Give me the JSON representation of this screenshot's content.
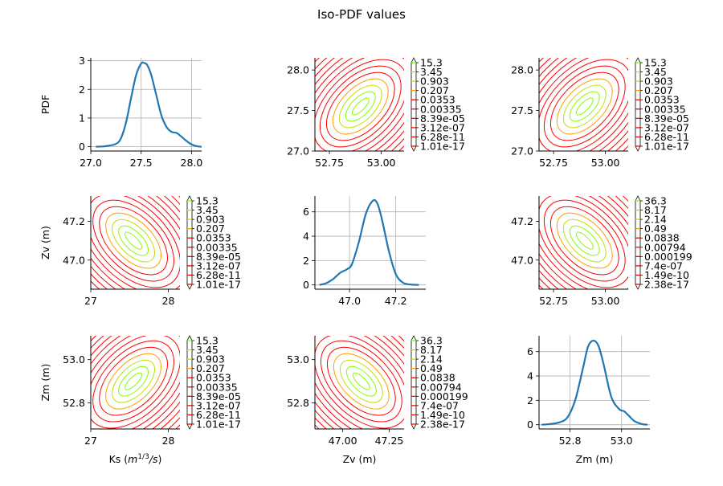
{
  "figure": {
    "title": "Iso-PDF values"
  },
  "colors": {
    "line": "#1f77b4",
    "grid": "#b0b0b0",
    "low": "#ff0000",
    "high": "#80ff00"
  },
  "chart_data": [
    {
      "id": "p11",
      "type": "line",
      "title": "",
      "xlabel": "",
      "ylabel": "PDF",
      "xlim": [
        27.0,
        28.1
      ],
      "ylim": [
        -0.15,
        3.1
      ],
      "xticks": [
        27.0,
        27.5,
        28.0
      ],
      "xtick_labels": [
        "27.0",
        "27.5",
        "28.0"
      ],
      "yticks": [
        0,
        1,
        2,
        3
      ],
      "ytick_labels": [
        "0",
        "1",
        "2",
        "3"
      ],
      "grid": true,
      "x": [
        27.05,
        27.15,
        27.25,
        27.3,
        27.35,
        27.4,
        27.45,
        27.5,
        27.53,
        27.56,
        27.6,
        27.65,
        27.7,
        27.75,
        27.8,
        27.85,
        27.9,
        27.95,
        28.0,
        28.05,
        28.1
      ],
      "y": [
        0.0,
        0.02,
        0.1,
        0.3,
        0.85,
        1.7,
        2.5,
        2.9,
        2.92,
        2.85,
        2.5,
        1.8,
        1.1,
        0.7,
        0.52,
        0.48,
        0.35,
        0.2,
        0.08,
        0.02,
        0.0
      ]
    },
    {
      "id": "p12",
      "type": "contour",
      "title": "",
      "xlabel": "",
      "ylabel": "",
      "xlim": [
        52.68,
        53.11
      ],
      "ylim": [
        27.0,
        28.15
      ],
      "xticks": [
        52.75,
        53.0
      ],
      "xtick_labels": [
        "52.75",
        "53.00"
      ],
      "yticks": [
        27.0,
        27.5,
        28.0
      ],
      "ytick_labels": [
        "27.0",
        "27.5",
        "28.0"
      ],
      "grid": false,
      "center": [
        52.9,
        27.55
      ],
      "correlation": "positive",
      "levels": [
        "15.3",
        "3.45",
        "0.903",
        "0.207",
        "0.0353",
        "0.00335",
        "8.39e-05",
        "3.12e-07",
        "6.28e-11",
        "1.01e-17"
      ]
    },
    {
      "id": "p13",
      "type": "contour",
      "title": "",
      "xlabel": "",
      "ylabel": "",
      "xlim": [
        52.68,
        53.11
      ],
      "ylim": [
        27.0,
        28.15
      ],
      "xticks": [
        52.75,
        53.0
      ],
      "xtick_labels": [
        "52.75",
        "53.00"
      ],
      "yticks": [
        27.0,
        27.5,
        28.0
      ],
      "ytick_labels": [
        "27.0",
        "27.5",
        "28.0"
      ],
      "grid": false,
      "center": [
        52.9,
        27.55
      ],
      "correlation": "positive",
      "levels": [
        "15.3",
        "3.45",
        "0.903",
        "0.207",
        "0.0353",
        "0.00335",
        "8.39e-05",
        "3.12e-07",
        "6.28e-11",
        "1.01e-17"
      ]
    },
    {
      "id": "p21",
      "type": "contour",
      "title": "",
      "xlabel": "",
      "ylabel": "Zv (m)",
      "xlim": [
        27.0,
        28.15
      ],
      "ylim": [
        46.85,
        47.33
      ],
      "xticks": [
        27,
        28
      ],
      "xtick_labels": [
        "27",
        "28"
      ],
      "yticks": [
        47.0,
        47.2
      ],
      "ytick_labels": [
        "47.0",
        "47.2"
      ],
      "grid": false,
      "center": [
        27.55,
        47.1
      ],
      "correlation": "negative",
      "levels": [
        "15.3",
        "3.45",
        "0.903",
        "0.207",
        "0.0353",
        "0.00335",
        "8.39e-05",
        "3.12e-07",
        "6.28e-11",
        "1.01e-17"
      ]
    },
    {
      "id": "p22",
      "type": "line",
      "title": "",
      "xlabel": "",
      "ylabel": "",
      "xlim": [
        46.85,
        47.33
      ],
      "ylim": [
        -0.35,
        7.3
      ],
      "xticks": [
        47.0,
        47.2
      ],
      "xtick_labels": [
        "47.0",
        "47.2"
      ],
      "yticks": [
        0,
        2,
        4,
        6
      ],
      "ytick_labels": [
        "0",
        "2",
        "4",
        "6"
      ],
      "grid": true,
      "x": [
        46.87,
        46.9,
        46.93,
        46.96,
        46.99,
        47.01,
        47.04,
        47.07,
        47.1,
        47.12,
        47.14,
        47.17,
        47.2,
        47.23,
        47.26,
        47.3
      ],
      "y": [
        0.0,
        0.15,
        0.5,
        1.0,
        1.3,
        1.7,
        3.5,
        5.8,
        6.9,
        6.7,
        5.4,
        2.8,
        0.9,
        0.2,
        0.04,
        0.0
      ]
    },
    {
      "id": "p23",
      "type": "contour",
      "title": "",
      "xlabel": "",
      "ylabel": "",
      "xlim": [
        52.68,
        53.11
      ],
      "ylim": [
        46.85,
        47.33
      ],
      "xticks": [
        52.75,
        53.0
      ],
      "xtick_labels": [
        "52.75",
        "53.00"
      ],
      "yticks": [
        47.0,
        47.2
      ],
      "ytick_labels": [
        "47.0",
        "47.2"
      ],
      "grid": false,
      "center": [
        52.9,
        47.1
      ],
      "correlation": "negative",
      "levels": [
        "36.3",
        "8.17",
        "2.14",
        "0.49",
        "0.0838",
        "0.00794",
        "0.000199",
        "7.4e-07",
        "1.49e-10",
        "2.38e-17"
      ]
    },
    {
      "id": "p31",
      "type": "contour",
      "title": "",
      "xlabel": "Ks ($m^{1/3}/s$)",
      "ylabel": "Zm (m)",
      "xlim": [
        27.0,
        28.15
      ],
      "ylim": [
        52.68,
        53.11
      ],
      "xticks": [
        27,
        28
      ],
      "xtick_labels": [
        "27",
        "28"
      ],
      "yticks": [
        52.8,
        53.0
      ],
      "ytick_labels": [
        "52.8",
        "53.0"
      ],
      "grid": false,
      "center": [
        27.55,
        52.9
      ],
      "correlation": "positive",
      "levels": [
        "15.3",
        "3.45",
        "0.903",
        "0.207",
        "0.0353",
        "0.00335",
        "8.39e-05",
        "3.12e-07",
        "6.28e-11",
        "1.01e-17"
      ]
    },
    {
      "id": "p32",
      "type": "contour",
      "title": "",
      "xlabel": "Zv (m)",
      "ylabel": "",
      "xlim": [
        46.85,
        47.33
      ],
      "ylim": [
        52.68,
        53.11
      ],
      "xticks": [
        47.0,
        47.25
      ],
      "xtick_labels": [
        "47.00",
        "47.25"
      ],
      "yticks": [
        52.8,
        53.0
      ],
      "ytick_labels": [
        "52.8",
        "53.0"
      ],
      "grid": false,
      "center": [
        47.1,
        52.9
      ],
      "correlation": "negative",
      "levels": [
        "36.3",
        "8.17",
        "2.14",
        "0.49",
        "0.0838",
        "0.00794",
        "0.000199",
        "7.4e-07",
        "1.49e-10",
        "2.38e-17"
      ]
    },
    {
      "id": "p33",
      "type": "line",
      "title": "",
      "xlabel": "Zm (m)",
      "ylabel": "",
      "xlim": [
        52.68,
        53.11
      ],
      "ylim": [
        -0.35,
        7.3
      ],
      "xticks": [
        52.8,
        53.0
      ],
      "xtick_labels": [
        "52.8",
        "53.0"
      ],
      "yticks": [
        0,
        2,
        4,
        6
      ],
      "ytick_labels": [
        "0",
        "2",
        "4",
        "6"
      ],
      "grid": true,
      "x": [
        52.69,
        52.72,
        52.76,
        52.79,
        52.82,
        52.85,
        52.87,
        52.89,
        52.91,
        52.93,
        52.96,
        52.99,
        53.01,
        53.03,
        53.05,
        53.08,
        53.1
      ],
      "y": [
        0.0,
        0.05,
        0.2,
        0.6,
        2.0,
        4.6,
        6.4,
        6.9,
        6.5,
        5.0,
        2.3,
        1.3,
        1.1,
        0.7,
        0.3,
        0.05,
        0.0
      ]
    }
  ]
}
